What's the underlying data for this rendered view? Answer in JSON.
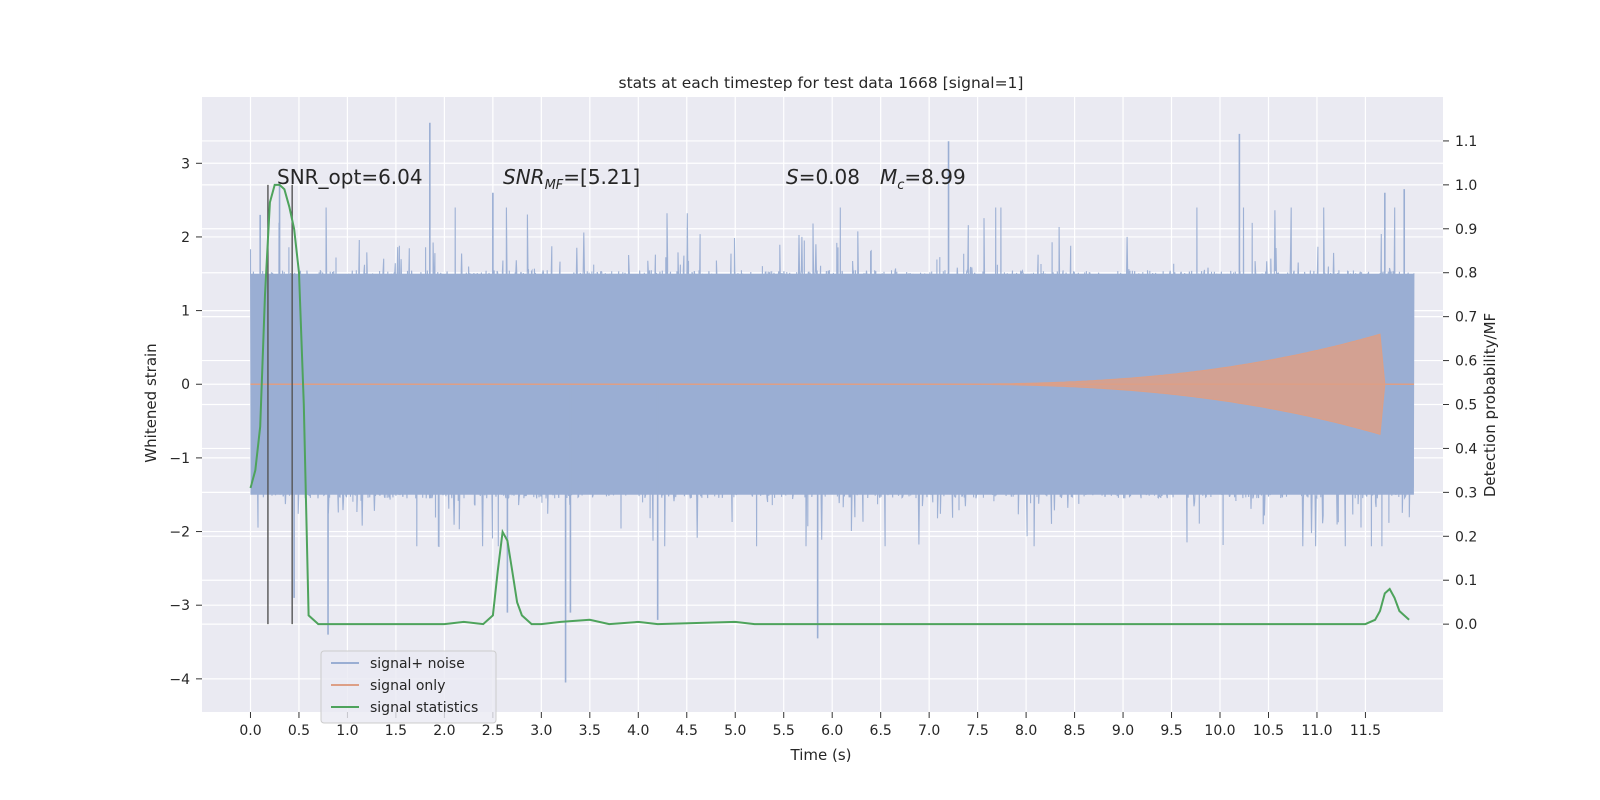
{
  "chart_data": {
    "type": "line",
    "title": "stats at each timestep for test data 1668 [signal=1]",
    "xlabel": "Time (s)",
    "ylabel": "Whitened strain",
    "y2label": "Detection probability/MF",
    "xlim": [
      -0.5,
      12.3
    ],
    "ylim": [
      -4.45,
      3.9
    ],
    "y2lim": [
      -0.2,
      1.2
    ],
    "x_ticks": [
      "0.0",
      "0.5",
      "1.0",
      "1.5",
      "2.0",
      "2.5",
      "3.0",
      "3.5",
      "4.0",
      "4.5",
      "5.0",
      "5.5",
      "6.0",
      "6.5",
      "7.0",
      "7.5",
      "8.0",
      "8.5",
      "9.0",
      "9.5",
      "10.0",
      "10.5",
      "11.0",
      "11.5"
    ],
    "y_ticks": [
      "3",
      "2",
      "1",
      "0",
      "−1",
      "−2",
      "−3",
      "−4"
    ],
    "y2_ticks": [
      "1.1",
      "1.0",
      "0.9",
      "0.8",
      "0.7",
      "0.6",
      "0.5",
      "0.4",
      "0.3",
      "0.2",
      "0.1",
      "0.0"
    ],
    "grid": true,
    "legend_position": "lower-left",
    "annotations": {
      "snr_opt": "SNR_opt=6.04",
      "snr_mf_prefix": "SNR",
      "snr_mf_sub": "MF",
      "snr_mf_value": "=[5.21]",
      "s_symbol": "S",
      "s_value": "=0.08",
      "mc_symbol": "M",
      "mc_sub": "c",
      "mc_value": "=8.99"
    },
    "vertical_lines": [
      0.18,
      0.43
    ],
    "series": [
      {
        "name": "signal+ noise",
        "color": "#9aaed3",
        "axis": "left",
        "description_x": [
          0,
          12
        ],
        "typical_band": [
          -1.5,
          1.5
        ],
        "peaks_x": [
          0.1,
          0.3,
          0.45,
          0.8,
          1.85,
          2.5,
          2.65,
          3.25,
          3.3,
          4.2,
          5.85,
          7.2,
          10.2,
          11.7,
          11.9
        ],
        "peaks_y": [
          2.3,
          2.7,
          -2.9,
          -3.4,
          3.55,
          2.6,
          -3.1,
          -4.05,
          -3.1,
          -3.2,
          -3.45,
          3.3,
          3.4,
          2.6,
          2.65
        ]
      },
      {
        "name": "signal only",
        "color": "#dd9f86",
        "axis": "left",
        "chirp_start": 7.0,
        "chirp_peak_time": 11.65,
        "chirp_peak_amplitude": 0.68
      },
      {
        "name": "signal statistics",
        "color": "#4ea35c",
        "axis": "right",
        "x": [
          0.0,
          0.05,
          0.1,
          0.15,
          0.2,
          0.25,
          0.3,
          0.35,
          0.4,
          0.45,
          0.5,
          0.55,
          0.6,
          0.7,
          1.0,
          2.0,
          2.2,
          2.4,
          2.5,
          2.55,
          2.6,
          2.65,
          2.7,
          2.75,
          2.8,
          2.9,
          3.0,
          3.2,
          3.5,
          3.7,
          4.0,
          4.2,
          5.0,
          5.2,
          6.0,
          8.0,
          11.5,
          11.6,
          11.65,
          11.7,
          11.75,
          11.8,
          11.85,
          11.9,
          11.95
        ],
        "y": [
          0.31,
          0.35,
          0.45,
          0.75,
          0.96,
          1.0,
          1.0,
          0.99,
          0.95,
          0.9,
          0.8,
          0.5,
          0.02,
          0.0,
          0.0,
          0.0,
          0.005,
          0.0,
          0.02,
          0.12,
          0.21,
          0.19,
          0.12,
          0.05,
          0.02,
          0.0,
          0.0,
          0.005,
          0.01,
          0.0,
          0.005,
          0.0,
          0.005,
          0.0,
          0.0,
          0.0,
          0.0,
          0.01,
          0.03,
          0.07,
          0.08,
          0.06,
          0.03,
          0.02,
          0.01
        ]
      }
    ]
  }
}
